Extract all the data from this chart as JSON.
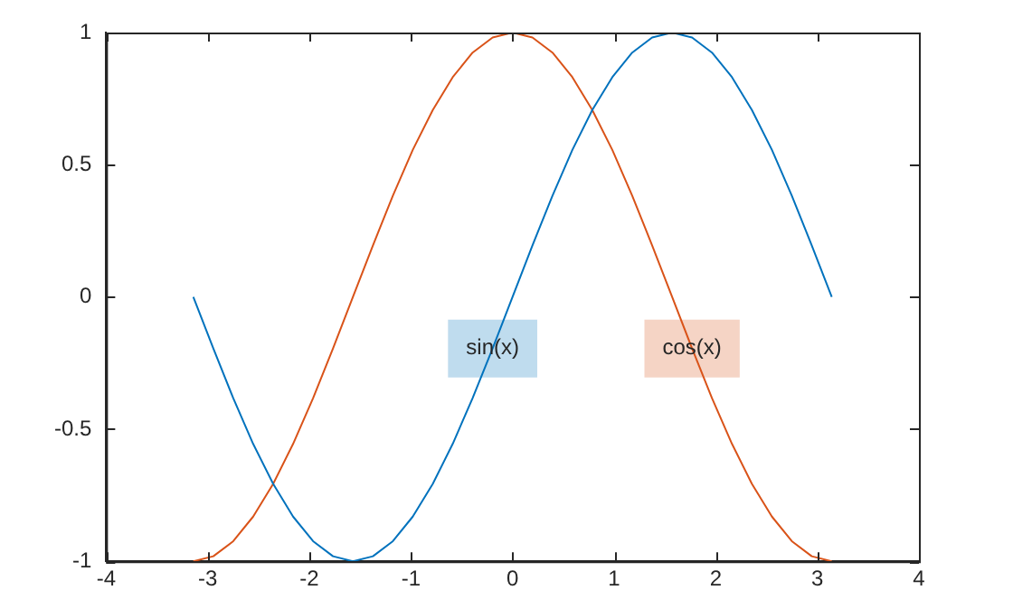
{
  "chart_data": {
    "type": "line",
    "x": [
      -3.142,
      -2.945,
      -2.749,
      -2.553,
      -2.356,
      -2.16,
      -1.963,
      -1.767,
      -1.571,
      -1.374,
      -1.178,
      -0.982,
      -0.785,
      -0.589,
      -0.393,
      -0.196,
      0,
      0.196,
      0.393,
      0.589,
      0.785,
      0.982,
      1.178,
      1.374,
      1.571,
      1.767,
      1.963,
      2.16,
      2.356,
      2.553,
      2.749,
      2.945,
      3.142
    ],
    "series": [
      {
        "color": "#0072bd",
        "values": [
          0,
          -0.195,
          -0.383,
          -0.556,
          -0.707,
          -0.831,
          -0.924,
          -0.981,
          -1,
          -0.981,
          -0.924,
          -0.831,
          -0.707,
          -0.556,
          -0.383,
          -0.195,
          0,
          0.195,
          0.383,
          0.556,
          0.707,
          0.831,
          0.924,
          0.981,
          1,
          0.981,
          0.924,
          0.831,
          0.707,
          0.556,
          0.383,
          0.195,
          0
        ]
      },
      {
        "color": "#d95319",
        "values": [
          -1,
          -0.981,
          -0.924,
          -0.831,
          -0.707,
          -0.556,
          -0.383,
          -0.195,
          0,
          0.195,
          0.383,
          0.556,
          0.707,
          0.831,
          0.924,
          0.981,
          1,
          0.981,
          0.924,
          0.831,
          0.707,
          0.556,
          0.383,
          0.195,
          0,
          -0.195,
          -0.383,
          -0.556,
          -0.707,
          -0.831,
          -0.924,
          -0.981,
          -1
        ]
      }
    ],
    "annotations": [
      {
        "text": "sin(x)",
        "x": -0.196,
        "y": -0.195
      },
      {
        "text": "cos(x)",
        "x": 1.767,
        "y": -0.195
      }
    ],
    "xlim": [
      -4,
      4
    ],
    "xticks": [
      -4,
      -3,
      -2,
      -1,
      0,
      1,
      2,
      3,
      4
    ],
    "ylim": [
      -1,
      1
    ],
    "yticks": [
      -1,
      -0.5,
      0,
      0.5,
      1
    ],
    "grid": false,
    "legend": false,
    "marker": "none",
    "line_style": "solid"
  }
}
